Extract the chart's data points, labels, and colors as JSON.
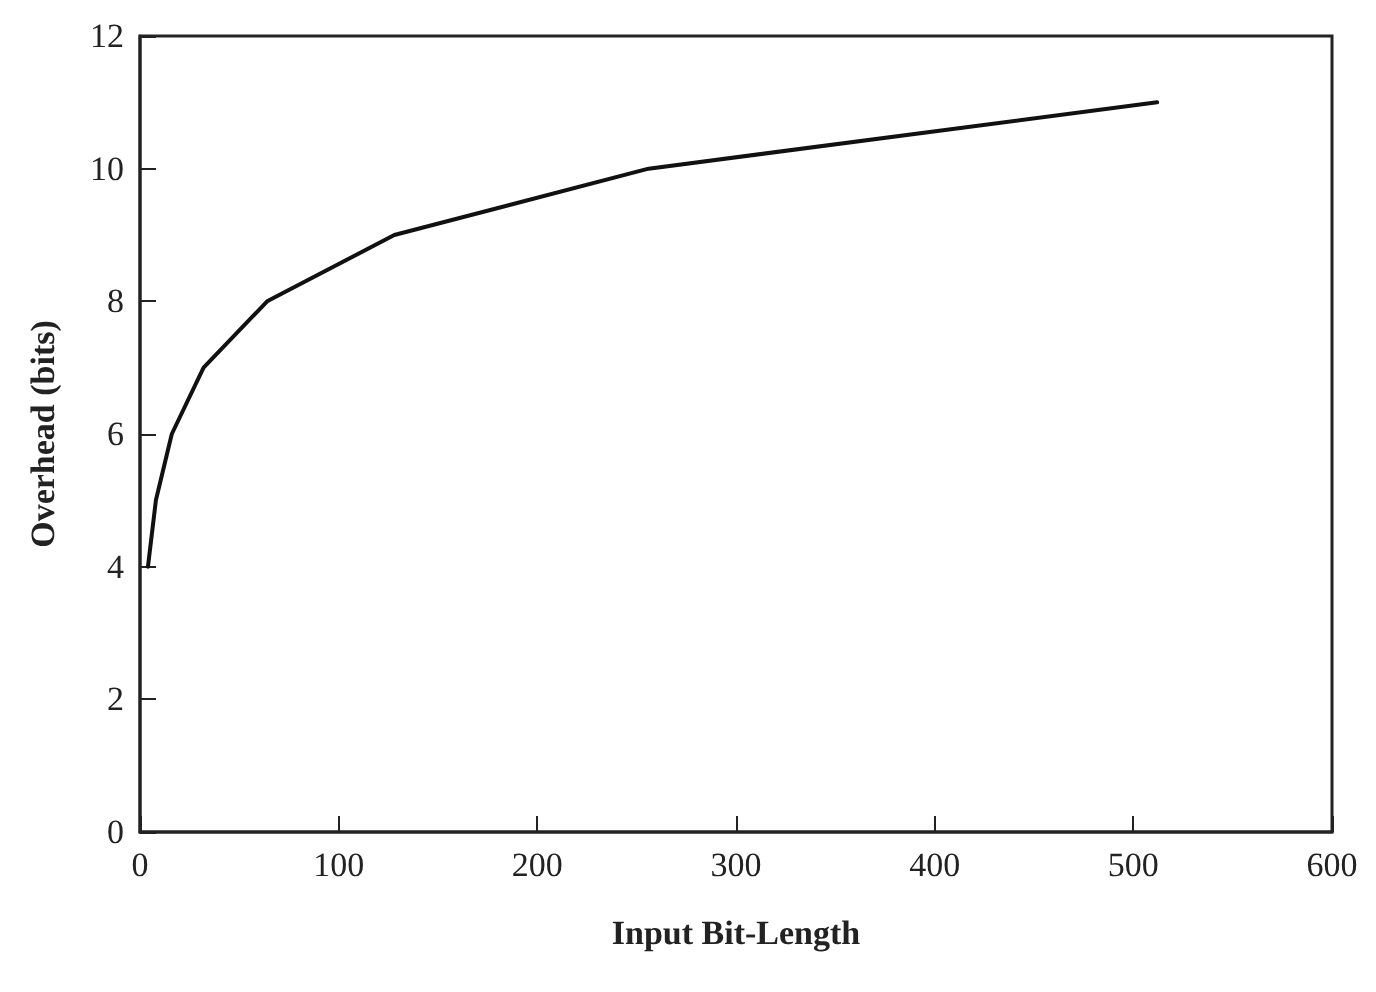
{
  "chart_data": {
    "type": "line",
    "xlabel": "Input Bit-Length",
    "ylabel": "Overhead (bits)",
    "x": [
      4,
      8,
      16,
      32,
      64,
      128,
      256,
      512
    ],
    "series": [
      {
        "color": "#111111",
        "values": [
          4,
          5,
          6,
          7,
          8,
          9,
          10,
          11
        ]
      }
    ],
    "xlim": [
      0,
      600
    ],
    "xticks": [
      0,
      100,
      200,
      300,
      400,
      500,
      600
    ],
    "ylim": [
      0,
      12
    ],
    "yticks": [
      0,
      2,
      4,
      6,
      8,
      10,
      12
    ],
    "grid": false,
    "marker": "none",
    "line_style": "solid"
  }
}
